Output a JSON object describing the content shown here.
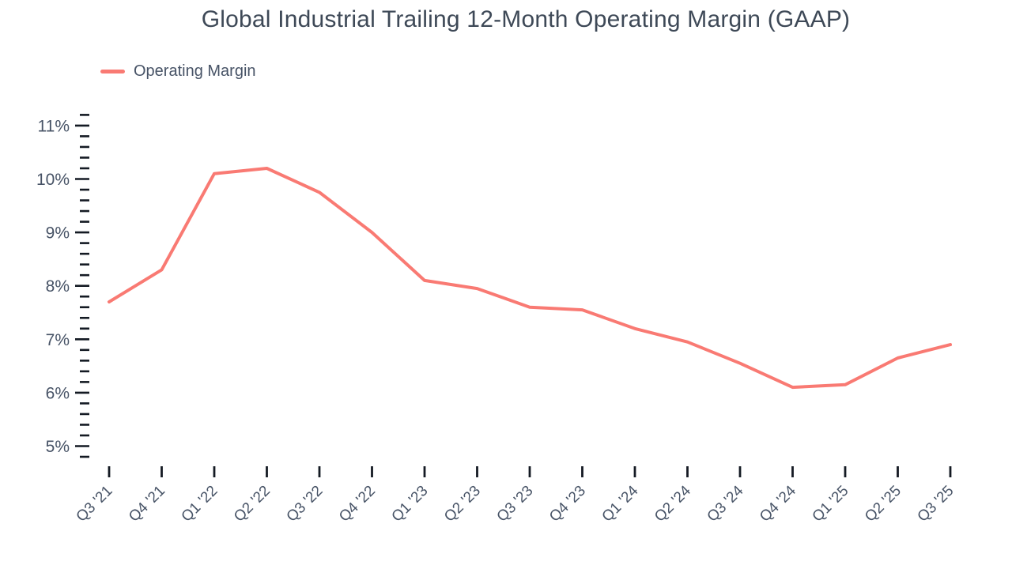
{
  "title": "Global Industrial Trailing 12-Month Operating Margin (GAAP)",
  "legend": {
    "label": "Operating Margin"
  },
  "colors": {
    "line": "#f97a73",
    "text": "#475366",
    "title_text": "#3e4957",
    "tick": "#141a23",
    "background": "#ffffff"
  },
  "chart_data": {
    "type": "line",
    "title": "Global Industrial Trailing 12-Month Operating Margin (GAAP)",
    "categories": [
      "Q3 '21",
      "Q4 '21",
      "Q1 '22",
      "Q2 '22",
      "Q3 '22",
      "Q4 '22",
      "Q1 '23",
      "Q2 '23",
      "Q3 '23",
      "Q4 '23",
      "Q1 '24",
      "Q2 '24",
      "Q3 '24",
      "Q4 '24",
      "Q1 '25",
      "Q2 '25",
      "Q3 '25"
    ],
    "series": [
      {
        "name": "Operating Margin",
        "values": [
          7.7,
          8.3,
          10.1,
          10.2,
          9.75,
          9.0,
          8.1,
          7.95,
          7.6,
          7.55,
          7.2,
          6.95,
          6.55,
          6.1,
          6.15,
          6.65,
          6.9
        ]
      }
    ],
    "unit": "%",
    "xlabel": "",
    "ylabel": "",
    "ylim": [
      4.8,
      11.2
    ],
    "y_major_ticks": [
      5,
      6,
      7,
      8,
      9,
      10,
      11
    ],
    "y_tick_labels": [
      "5%",
      "6%",
      "7%",
      "8%",
      "9%",
      "10%",
      "11%"
    ],
    "y_minor_step": 0.2,
    "grid": false,
    "legend_position": "top-left",
    "x_label_rotation_deg": -45
  }
}
